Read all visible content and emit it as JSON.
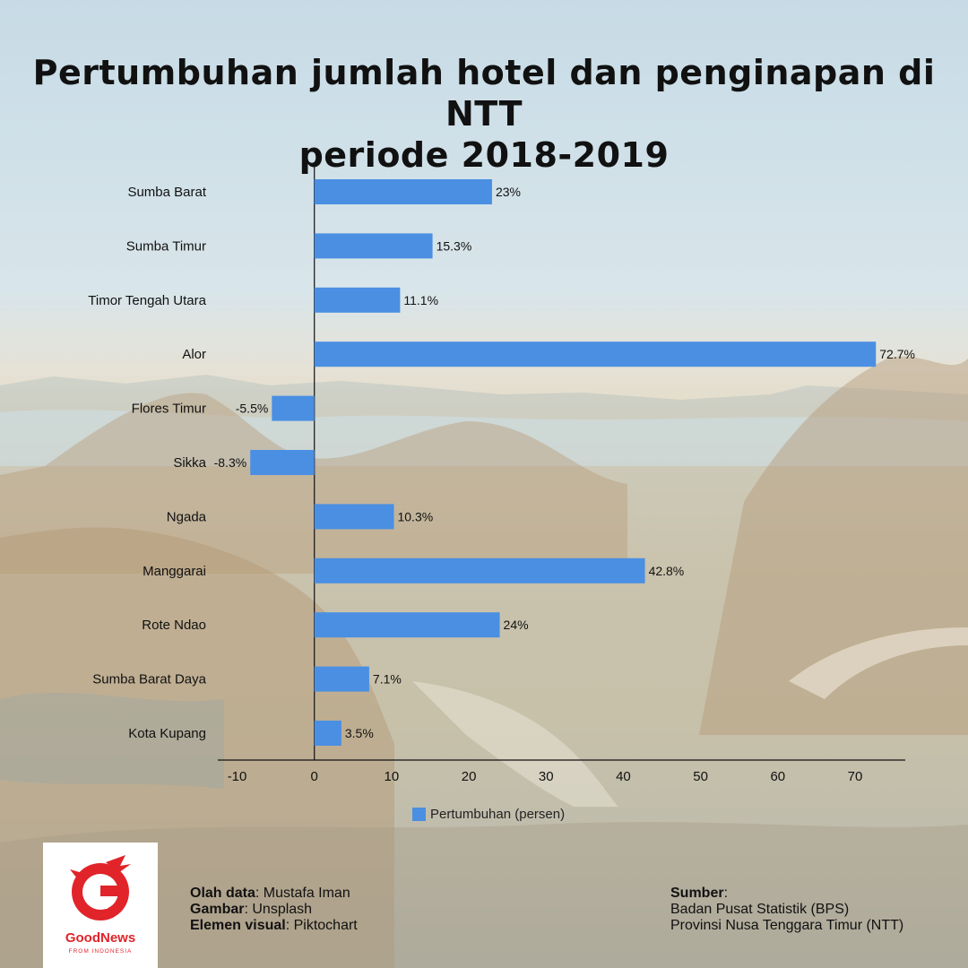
{
  "title_line1": "Pertumbuhan jumlah hotel dan penginapan di NTT",
  "title_line2": "periode 2018-2019",
  "chart_data": {
    "type": "bar",
    "orientation": "horizontal",
    "categories": [
      "Sumba Barat",
      "Sumba Timur",
      "Timor Tengah Utara",
      "Alor",
      "Flores Timur",
      "Sikka",
      "Ngada",
      "Manggarai",
      "Rote Ndao",
      "Sumba Barat Daya",
      "Kota Kupang"
    ],
    "series": [
      {
        "name": "Pertumbuhan (persen)",
        "values": [
          23,
          15.3,
          11.1,
          72.7,
          -5.5,
          -8.3,
          10.3,
          42.8,
          24,
          7.1,
          3.5
        ],
        "labels": [
          "23%",
          "15.3%",
          "11.1%",
          "72.7%",
          "-5.5%",
          "-8.3%",
          "10.3%",
          "42.8%",
          "24%",
          "7.1%",
          "3.5%"
        ]
      }
    ],
    "xlim": [
      -12.5,
      76.5
    ],
    "xticks": [
      "-10",
      "0",
      "10",
      "20",
      "30",
      "40",
      "50",
      "60",
      "70"
    ],
    "grid": false,
    "legend_position": "bottom",
    "bar_color": "#4a8fe2"
  },
  "legend": {
    "label": "Pertumbuhan (persen)"
  },
  "logo": {
    "name": "GoodNews",
    "sub": "FROM INDONESIA",
    "color": "#e0242a"
  },
  "credits": {
    "data_label": "Olah data",
    "data_value": "Mustafa Iman",
    "image_label": "Gambar",
    "image_value": "Unsplash",
    "visual_label": "Elemen visual",
    "visual_value": "Piktochart"
  },
  "source": {
    "label": "Sumber",
    "line1": "Badan Pusat Statistik (BPS)",
    "line2": "Provinsi Nusa Tenggara Timur (NTT)"
  }
}
